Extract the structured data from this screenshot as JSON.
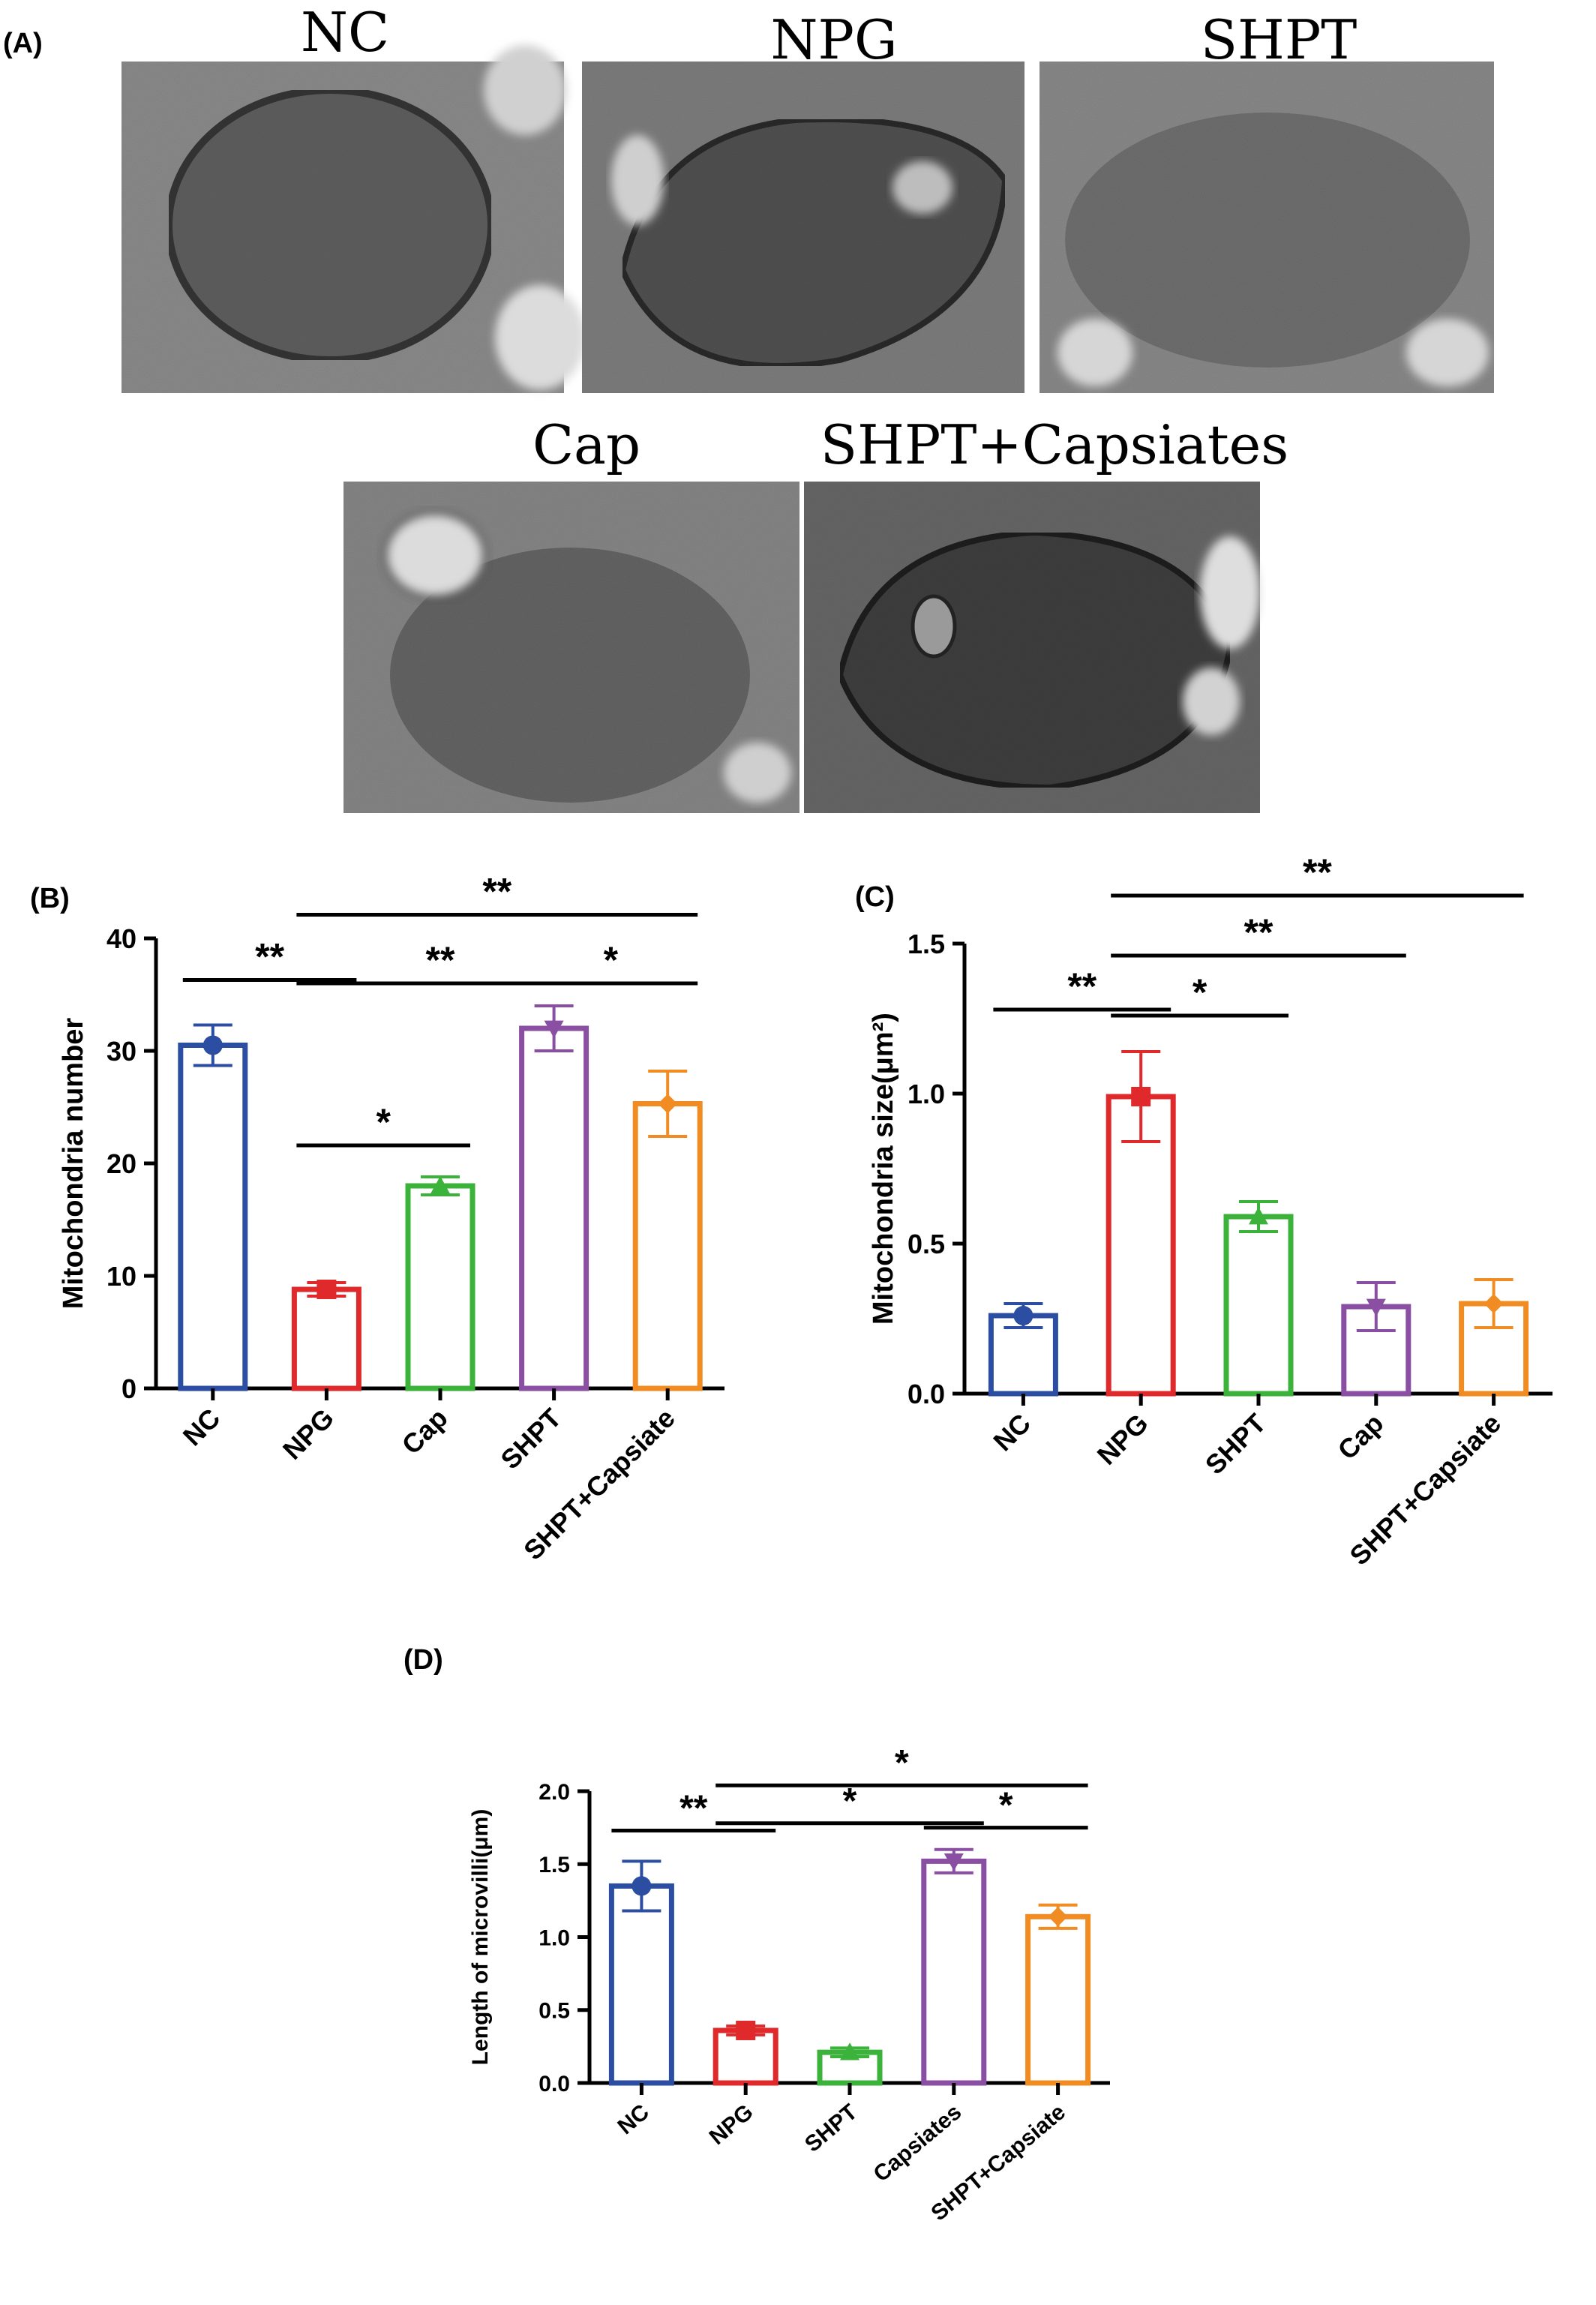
{
  "panel_a": {
    "letter": "(A)",
    "images": [
      {
        "label": "NC",
        "tone": "#8a8a8a"
      },
      {
        "label": "NPG",
        "tone": "#7c7c7c"
      },
      {
        "label": "SHPT",
        "tone": "#888888"
      },
      {
        "label": "Cap",
        "tone": "#858585"
      },
      {
        "label": "SHPT+Capsiates",
        "tone": "#666666"
      }
    ]
  },
  "chart_data": [
    {
      "id": "B",
      "letter": "(B)",
      "type": "bar",
      "ylabel": "Mitochondria number",
      "ylim": [
        0,
        40
      ],
      "yticks": [
        "0",
        "10",
        "20",
        "30",
        "40"
      ],
      "categories": [
        "NC",
        "NPG",
        "Cap",
        "SHPT",
        "SHPT+Capsiate"
      ],
      "values": [
        30.5,
        8.8,
        18.0,
        32.0,
        25.3
      ],
      "errors": [
        1.8,
        0.6,
        0.8,
        2.0,
        2.9
      ],
      "colors": [
        "#2b4ea2",
        "#e0292b",
        "#3bb33a",
        "#8a4ea3",
        "#f08c22"
      ],
      "markers": [
        "circle",
        "square",
        "triangle-up",
        "triangle-down",
        "diamond"
      ],
      "significance": [
        {
          "from": 0,
          "to": 1,
          "y": 36.3,
          "label": "**"
        },
        {
          "from": 1,
          "to": 2,
          "y": 21.6,
          "label": "*"
        },
        {
          "from": 1,
          "to": 3,
          "y": 36.0,
          "label": "**"
        },
        {
          "from": 3,
          "to": 4,
          "y": 36.0,
          "label": "*"
        },
        {
          "from": 1,
          "to": 4,
          "y": 42.1,
          "label": "**"
        }
      ]
    },
    {
      "id": "C",
      "letter": "(C)",
      "type": "bar",
      "ylabel": "Mitochondria size(μm²)",
      "ylim": [
        0,
        1.5
      ],
      "yticks": [
        "0.0",
        "0.5",
        "1.0",
        "1.5"
      ],
      "categories": [
        "NC",
        "NPG",
        "SHPT",
        "Cap",
        "SHPT+Capsiate"
      ],
      "values": [
        0.26,
        0.99,
        0.59,
        0.29,
        0.3
      ],
      "errors": [
        0.04,
        0.15,
        0.05,
        0.08,
        0.08
      ],
      "colors": [
        "#2b4ea2",
        "#e0292b",
        "#3bb33a",
        "#8a4ea3",
        "#f08c22"
      ],
      "markers": [
        "circle",
        "square",
        "triangle-up",
        "triangle-down",
        "diamond"
      ],
      "significance": [
        {
          "from": 0,
          "to": 1,
          "y": 1.28,
          "label": "**"
        },
        {
          "from": 1,
          "to": 2,
          "y": 1.26,
          "label": "*"
        },
        {
          "from": 1,
          "to": 3,
          "y": 1.46,
          "label": "**"
        },
        {
          "from": 1,
          "to": 4,
          "y": 1.66,
          "label": "**"
        }
      ]
    },
    {
      "id": "D",
      "letter": "(D)",
      "type": "bar",
      "ylabel": "Length of microvilli(μm)",
      "ylim": [
        0,
        2.0
      ],
      "yticks": [
        "0.0",
        "0.5",
        "1.0",
        "1.5",
        "2.0"
      ],
      "categories": [
        "NC",
        "NPG",
        "SHPT",
        "Capsiates",
        "SHPT+Capsiate"
      ],
      "values": [
        1.35,
        0.36,
        0.21,
        1.52,
        1.14
      ],
      "errors": [
        0.17,
        0.03,
        0.03,
        0.08,
        0.08
      ],
      "colors": [
        "#2b4ea2",
        "#e0292b",
        "#3bb33a",
        "#8a4ea3",
        "#f08c22"
      ],
      "markers": [
        "circle",
        "square",
        "triangle-up",
        "triangle-down",
        "diamond"
      ],
      "significance": [
        {
          "from": 0,
          "to": 1,
          "y": 1.73,
          "label": "**"
        },
        {
          "from": 1,
          "to": 3,
          "y": 1.78,
          "label": "*"
        },
        {
          "from": 3,
          "to": 4,
          "y": 1.75,
          "label": "*"
        },
        {
          "from": 1,
          "to": 4,
          "y": 2.04,
          "label": "*"
        }
      ]
    }
  ]
}
